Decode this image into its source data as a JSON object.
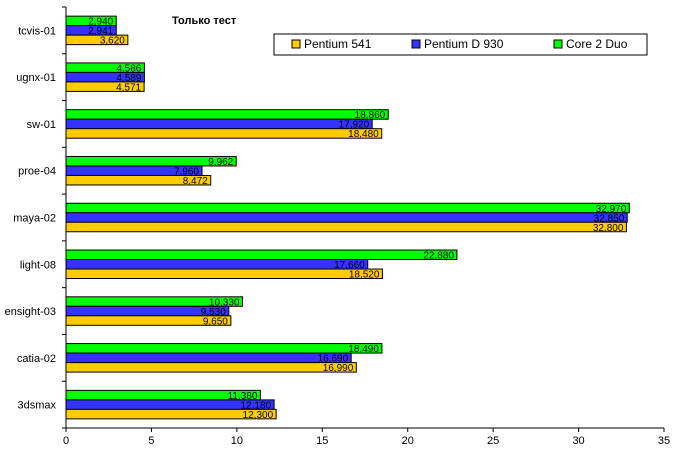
{
  "chart_data": {
    "type": "bar",
    "orientation": "horizontal",
    "title": "Только тест",
    "categories": [
      "tcvis-01",
      "ugnx-01",
      "sw-01",
      "proe-04",
      "maya-02",
      "light-08",
      "ensight-03",
      "catia-02",
      "3dsmax"
    ],
    "xlim": [
      0,
      35
    ],
    "xticks": [
      0,
      5,
      10,
      15,
      20,
      25,
      30,
      35
    ],
    "legend_position": "top-right",
    "series": [
      {
        "name": "Core 2 Duo",
        "color": "#00ff00",
        "values": [
          2.94,
          4.586,
          18.86,
          9.962,
          32.97,
          22.88,
          10.33,
          18.49,
          11.38
        ],
        "labels": [
          "2,940",
          "4,586",
          "18,860",
          "9,962",
          "32,970",
          "22,880",
          "10,330",
          "18,490",
          "11,380"
        ]
      },
      {
        "name": "Pentium D 930",
        "color": "#3333ff",
        "values": [
          2.941,
          4.589,
          17.92,
          7.96,
          32.85,
          17.66,
          9.53,
          16.69,
          12.18
        ],
        "labels": [
          "2,941",
          "4,589",
          "17,920",
          "7,960",
          "32,850",
          "17,660",
          "9,530",
          "16,690",
          "12,180"
        ]
      },
      {
        "name": "Pentium 541",
        "color": "#ffcc00",
        "values": [
          3.62,
          4.571,
          18.48,
          8.472,
          32.8,
          18.52,
          9.65,
          16.99,
          12.3
        ],
        "labels": [
          "3,620",
          "4,571",
          "18,480",
          "8,472",
          "32,800",
          "18,520",
          "9,650",
          "16,990",
          "12,300"
        ]
      }
    ],
    "legend_order": [
      "Pentium 541",
      "Pentium D 930",
      "Core 2 Duo"
    ]
  }
}
